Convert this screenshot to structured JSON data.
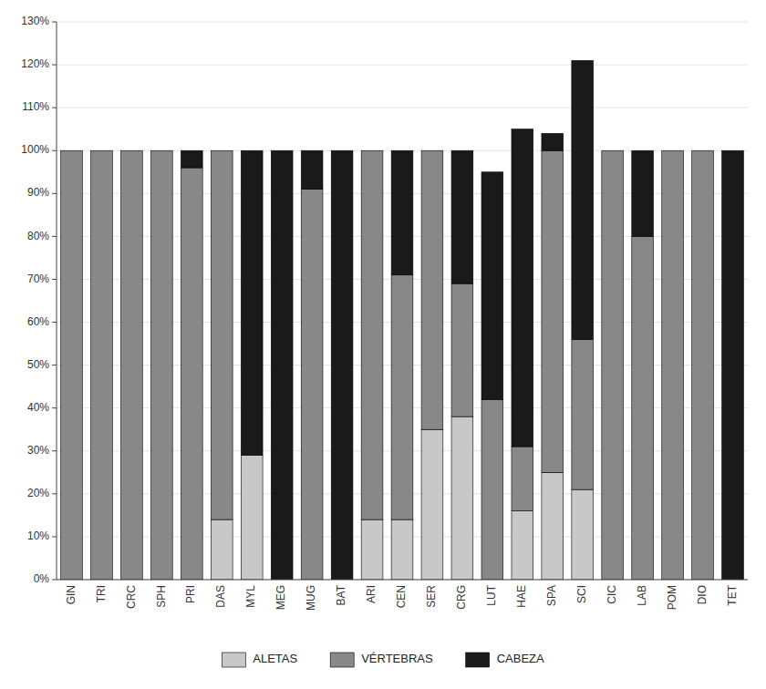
{
  "chart_data": {
    "type": "bar",
    "stacked": true,
    "categories": [
      "GIN",
      "TRI",
      "CRC",
      "SPH",
      "PRI",
      "DAS",
      "MYL",
      "MEG",
      "MUG",
      "BAT",
      "ARI",
      "CEN",
      "SER",
      "CRG",
      "LUT",
      "HAE",
      "SPA",
      "SCI",
      "CIC",
      "LAB",
      "POM",
      "DIO",
      "TET"
    ],
    "series": [
      {
        "name": "ALETAS",
        "color": "#c8c8c8",
        "values": [
          0,
          0,
          0,
          0,
          0,
          14,
          29,
          0,
          0,
          0,
          14,
          14,
          35,
          38,
          0,
          16,
          25,
          21,
          0,
          0,
          0,
          0,
          0
        ]
      },
      {
        "name": "VÉRTEBRAS",
        "color": "#888888",
        "values": [
          100,
          100,
          100,
          100,
          96,
          86,
          0,
          0,
          91,
          0,
          86,
          57,
          65,
          31,
          42,
          15,
          75,
          35,
          100,
          80,
          100,
          100,
          0
        ]
      },
      {
        "name": "CABEZA",
        "color": "#1a1a1a",
        "values": [
          0,
          0,
          0,
          0,
          4,
          0,
          71,
          100,
          9,
          100,
          0,
          29,
          0,
          31,
          53,
          74,
          4,
          65,
          0,
          20,
          0,
          0,
          100
        ]
      }
    ],
    "ylim": [
      0,
      130
    ],
    "yticks": [
      {
        "value": 0,
        "label": "0%"
      },
      {
        "value": 10,
        "label": "10%"
      },
      {
        "value": 20,
        "label": "20%"
      },
      {
        "value": 30,
        "label": "30%"
      },
      {
        "value": 40,
        "label": "40%"
      },
      {
        "value": 50,
        "label": "50%"
      },
      {
        "value": 60,
        "label": "60%"
      },
      {
        "value": 70,
        "label": "70%"
      },
      {
        "value": 80,
        "label": "80%"
      },
      {
        "value": 90,
        "label": "90%"
      },
      {
        "value": 100,
        "label": "100%"
      },
      {
        "value": 110,
        "label": "110%"
      },
      {
        "value": 120,
        "label": "120%"
      },
      {
        "value": 130,
        "label": "130%"
      }
    ],
    "grid": true,
    "legend": "bottom"
  }
}
